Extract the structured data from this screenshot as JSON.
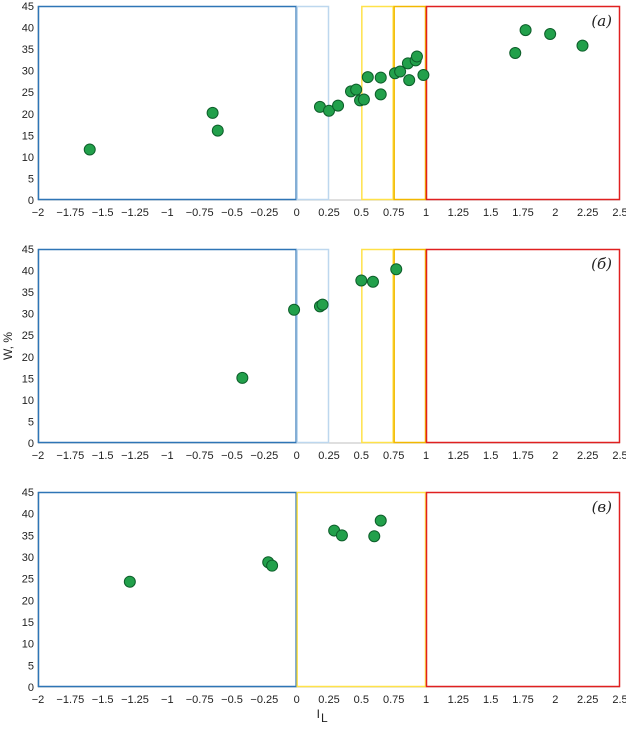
{
  "xlabel": "I",
  "xlabel_sub": "L",
  "ylabel": "W, %",
  "chart_data": [
    {
      "type": "scatter",
      "panel_label": "(а)",
      "xlim": [
        -2,
        2.5
      ],
      "ylim": [
        0,
        45
      ],
      "x_ticks": [
        "−2",
        "−1.75",
        "−1.5",
        "−1.25",
        "−1",
        "−0.75",
        "−0.5",
        "−0.25",
        "0",
        "0.25",
        "0.5",
        "0.75",
        "1",
        "1.25",
        "1.5",
        "1.75",
        "2",
        "2.25",
        "2.5"
      ],
      "y_ticks": [
        "0",
        "5",
        "10",
        "15",
        "20",
        "25",
        "30",
        "35",
        "40",
        "45"
      ],
      "marker_color": "#22a04b",
      "points": [
        {
          "x": -1.6,
          "y": 11.7
        },
        {
          "x": -0.65,
          "y": 20.2
        },
        {
          "x": -0.61,
          "y": 16.1
        },
        {
          "x": 0.18,
          "y": 21.6
        },
        {
          "x": 0.25,
          "y": 20.7
        },
        {
          "x": 0.32,
          "y": 21.9
        },
        {
          "x": 0.42,
          "y": 25.2
        },
        {
          "x": 0.46,
          "y": 25.6
        },
        {
          "x": 0.49,
          "y": 23.1
        },
        {
          "x": 0.52,
          "y": 23.3
        },
        {
          "x": 0.55,
          "y": 28.5
        },
        {
          "x": 0.65,
          "y": 28.4
        },
        {
          "x": 0.65,
          "y": 24.5
        },
        {
          "x": 0.76,
          "y": 29.4
        },
        {
          "x": 0.8,
          "y": 29.8
        },
        {
          "x": 0.86,
          "y": 31.7
        },
        {
          "x": 0.87,
          "y": 27.8
        },
        {
          "x": 0.92,
          "y": 32.4
        },
        {
          "x": 0.93,
          "y": 33.3
        },
        {
          "x": 0.98,
          "y": 29.0
        },
        {
          "x": 1.69,
          "y": 34.1
        },
        {
          "x": 1.77,
          "y": 39.4
        },
        {
          "x": 1.96,
          "y": 38.5
        },
        {
          "x": 2.21,
          "y": 35.8
        }
      ],
      "zones": [
        {
          "x0": -2,
          "x1": 0,
          "color": "#2e75b6"
        },
        {
          "x0": 0,
          "x1": 0.25,
          "color": "#bdd7ee"
        },
        {
          "x0": 0.5,
          "x1": 0.75,
          "color": "#ffe24a"
        },
        {
          "x0": 0.75,
          "x1": 1,
          "color": "#f2b800"
        },
        {
          "x0": 1,
          "x1": 2.5,
          "color": "#e02020"
        }
      ]
    },
    {
      "type": "scatter",
      "panel_label": "(б)",
      "xlim": [
        -2,
        2.5
      ],
      "ylim": [
        0,
        45
      ],
      "x_ticks": [
        "−2",
        "−1.75",
        "−1.5",
        "−1.25",
        "−1",
        "−0.75",
        "−0.5",
        "−0.25",
        "0",
        "0.25",
        "0.5",
        "0.75",
        "1",
        "1.25",
        "1.5",
        "1.75",
        "2",
        "2.25",
        "2.5"
      ],
      "y_ticks": [
        "0",
        "5",
        "10",
        "15",
        "20",
        "25",
        "30",
        "35",
        "40",
        "45"
      ],
      "marker_color": "#22a04b",
      "points": [
        {
          "x": -0.42,
          "y": 15.1
        },
        {
          "x": -0.02,
          "y": 30.9
        },
        {
          "x": 0.18,
          "y": 31.7
        },
        {
          "x": 0.2,
          "y": 32.1
        },
        {
          "x": 0.5,
          "y": 37.7
        },
        {
          "x": 0.59,
          "y": 37.4
        },
        {
          "x": 0.77,
          "y": 40.3
        }
      ],
      "zones": [
        {
          "x0": -2,
          "x1": 0,
          "color": "#2e75b6"
        },
        {
          "x0": 0,
          "x1": 0.25,
          "color": "#bdd7ee"
        },
        {
          "x0": 0.5,
          "x1": 0.75,
          "color": "#ffe24a"
        },
        {
          "x0": 0.75,
          "x1": 1,
          "color": "#f2b800"
        },
        {
          "x0": 1,
          "x1": 2.5,
          "color": "#e02020"
        }
      ]
    },
    {
      "type": "scatter",
      "panel_label": "(в)",
      "xlim": [
        -2,
        2.5
      ],
      "ylim": [
        0,
        45
      ],
      "x_ticks": [
        "−2",
        "−1.75",
        "−1.5",
        "−1.25",
        "−1",
        "−0.75",
        "−0.5",
        "−0.25",
        "0",
        "0.25",
        "0.5",
        "0.75",
        "1",
        "1.25",
        "1.5",
        "1.75",
        "2",
        "2.25",
        "2.5"
      ],
      "y_ticks": [
        "0",
        "5",
        "10",
        "15",
        "20",
        "25",
        "30",
        "35",
        "40",
        "45"
      ],
      "marker_color": "#22a04b",
      "points": [
        {
          "x": -1.29,
          "y": 24.3
        },
        {
          "x": -0.22,
          "y": 28.8
        },
        {
          "x": -0.19,
          "y": 28.0
        },
        {
          "x": 0.29,
          "y": 36.1
        },
        {
          "x": 0.35,
          "y": 35.0
        },
        {
          "x": 0.6,
          "y": 34.8
        },
        {
          "x": 0.65,
          "y": 38.4
        }
      ],
      "zones": [
        {
          "x0": -2,
          "x1": 0,
          "color": "#2e75b6"
        },
        {
          "x0": 0,
          "x1": 1,
          "color": "#ffe24a"
        },
        {
          "x0": 1,
          "x1": 2.5,
          "color": "#e02020"
        }
      ]
    }
  ]
}
